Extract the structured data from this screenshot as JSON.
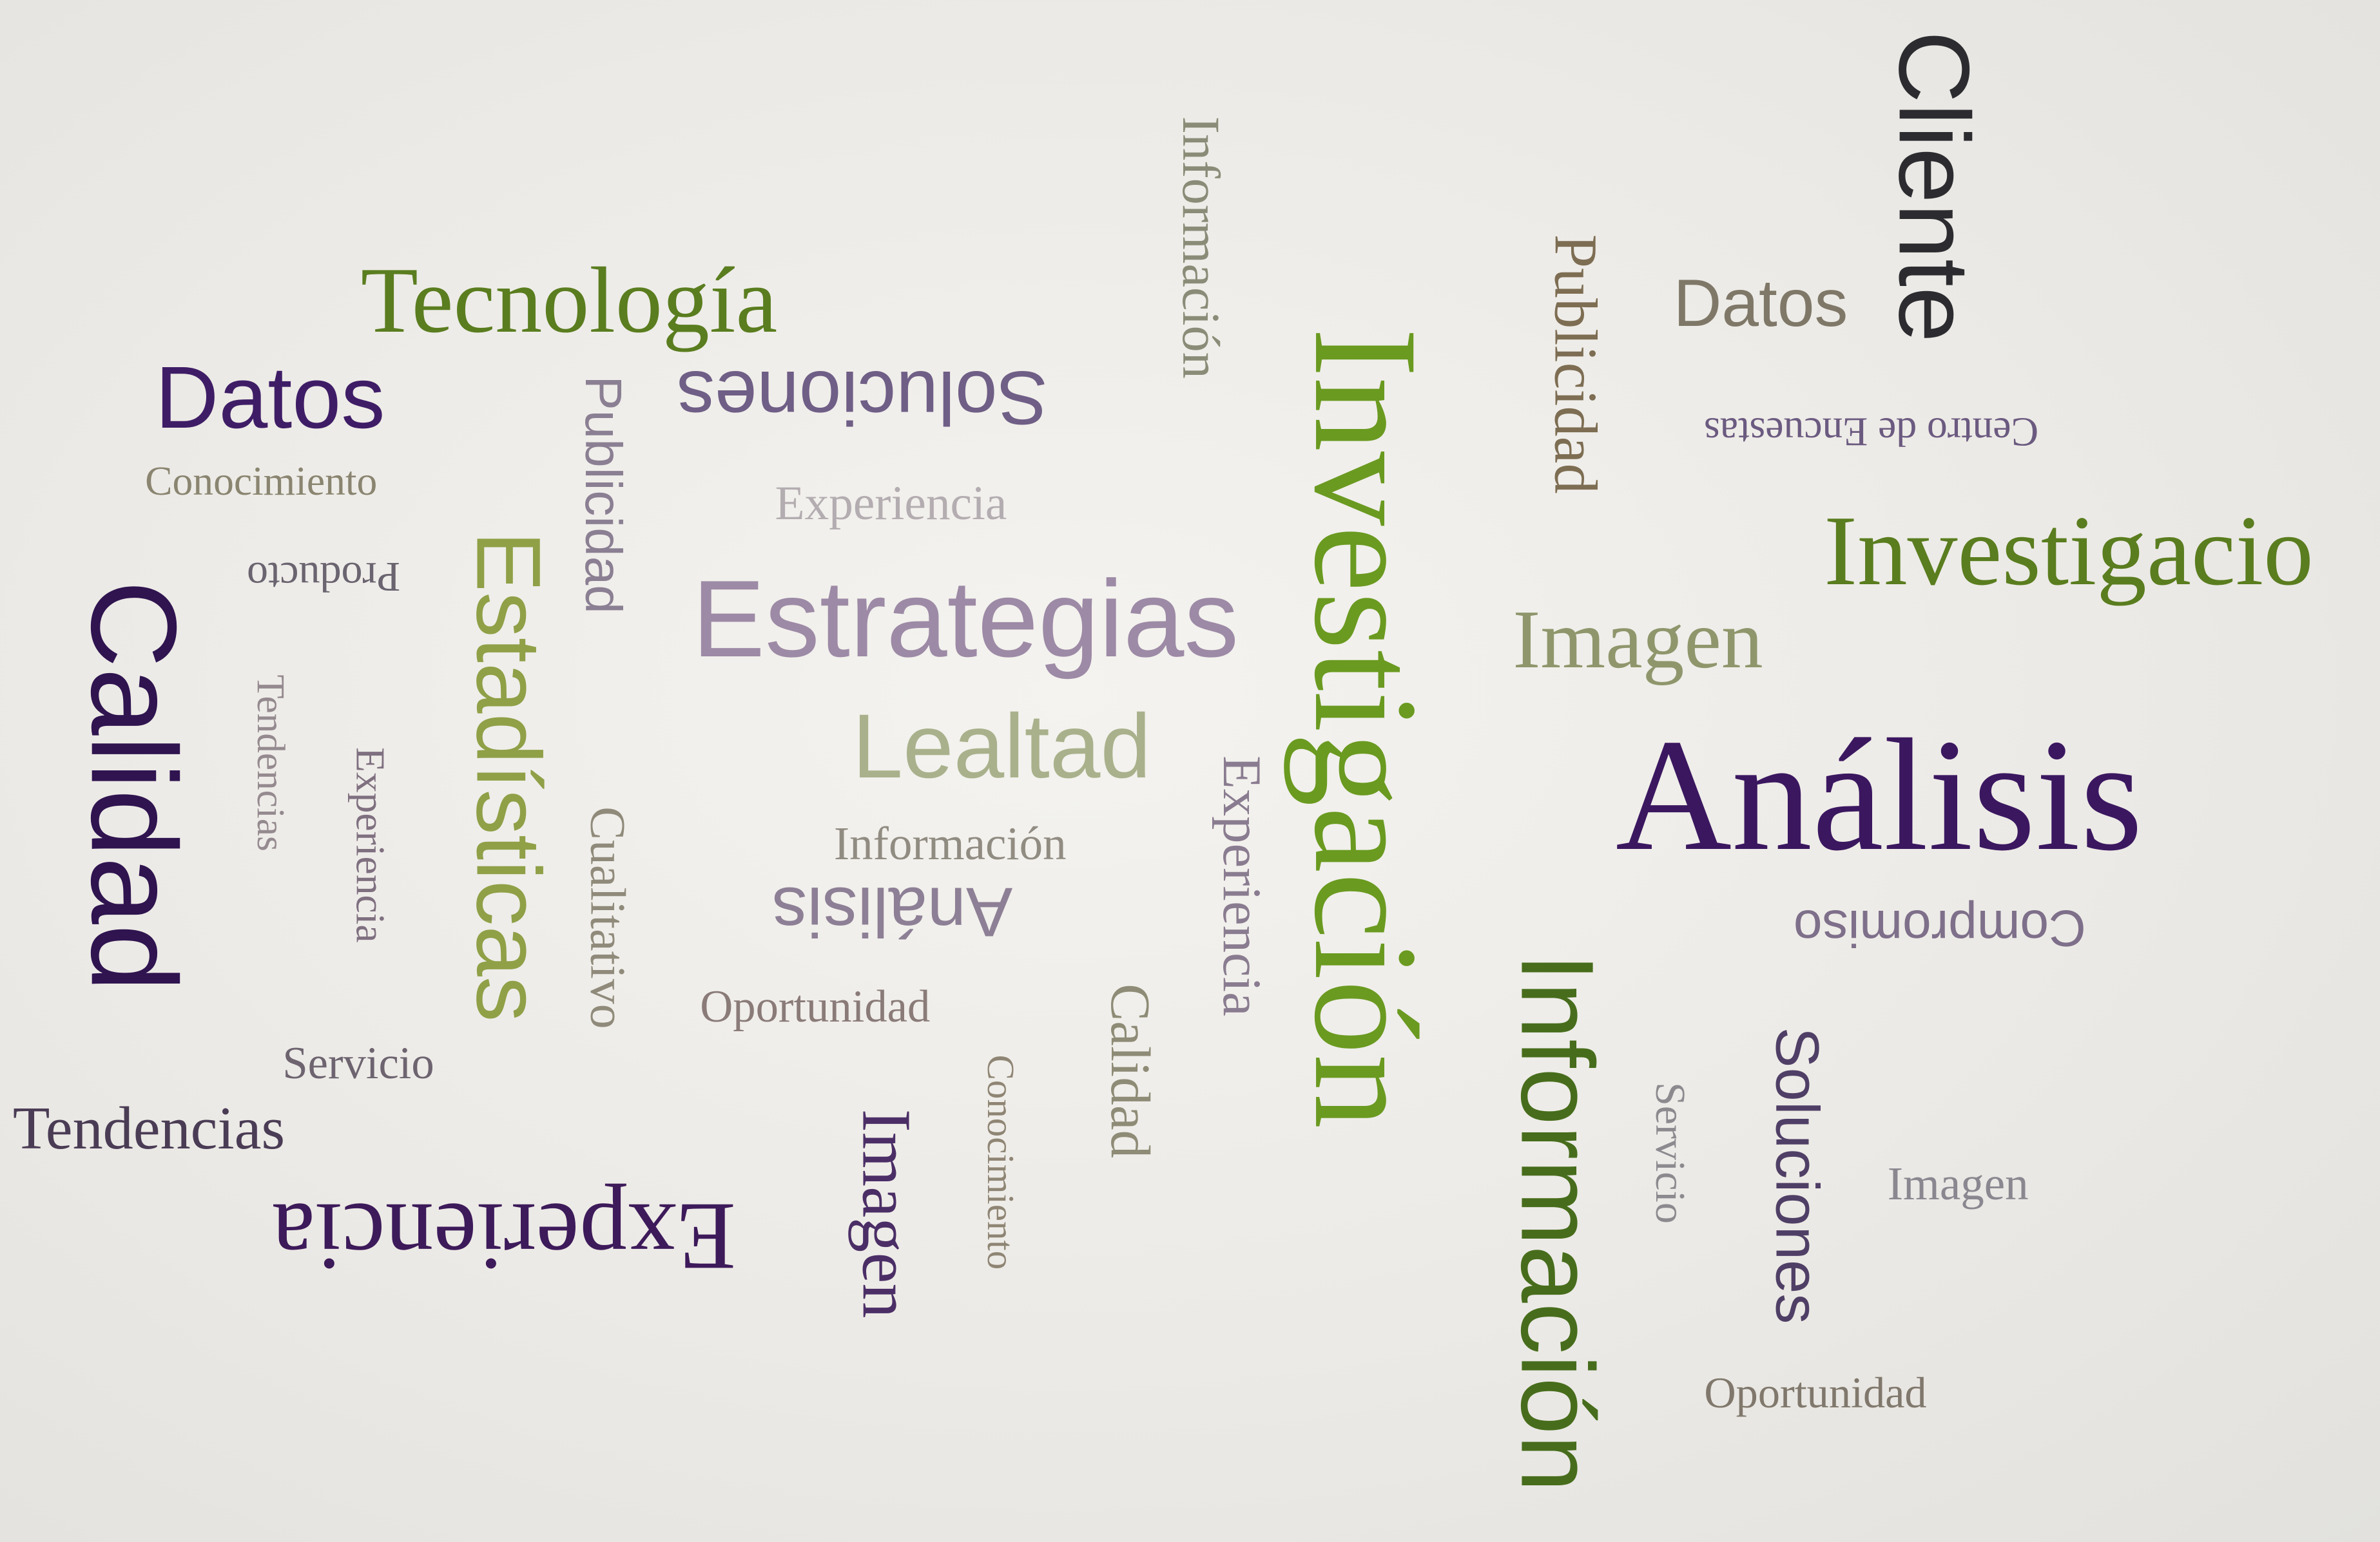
{
  "colors": {
    "background": "#ecebe7",
    "purple_dark": "#3b1760",
    "purple": "#4a2270",
    "green": "#5a7d1f",
    "green_dark": "#476d1c",
    "green_bright": "#6a9a20",
    "olive": "#8a8f55",
    "mauve": "#9d8aa6",
    "grey_purple": "#7f6f8a",
    "grey_green": "#8f9a72",
    "sage": "#a9b18c"
  },
  "words": [
    {
      "text": "Tecnología",
      "color": "#5a7d1f"
    },
    {
      "text": "Datos",
      "color": "#3f1d66"
    },
    {
      "text": "Conocimiento",
      "color": "#8a8570"
    },
    {
      "text": "Calidad",
      "color": "#2f1450"
    },
    {
      "text": "Producto",
      "color": "#6a6470"
    },
    {
      "text": "Tendencias",
      "color": "#948a8f"
    },
    {
      "text": "Experiencia",
      "color": "#7f7080"
    },
    {
      "text": "Servicio",
      "color": "#6d6470"
    },
    {
      "text": "Tendencias",
      "color": "#4a3c55"
    },
    {
      "text": "Experiencia",
      "color": "#3d1a5a"
    },
    {
      "text": "Publicidad",
      "color": "#8b7f93"
    },
    {
      "text": "Estadísticas",
      "color": "#8fa047"
    },
    {
      "text": "Cualitativo",
      "color": "#8f8a7a"
    },
    {
      "text": "Soluciones",
      "color": "#6f5e86"
    },
    {
      "text": "Experiencia",
      "color": "#b3acb0"
    },
    {
      "text": "Estrategias",
      "color": "#9d8aa6"
    },
    {
      "text": "Lealtad",
      "color": "#a9b18c"
    },
    {
      "text": "Información",
      "color": "#918c82"
    },
    {
      "text": "Análisis",
      "color": "#8d7f95"
    },
    {
      "text": "Oportunidad",
      "color": "#8a7b78"
    },
    {
      "text": "Imagen",
      "color": "#4b2e66"
    },
    {
      "text": "Conocimiento",
      "color": "#8f8574"
    },
    {
      "text": "Calidad",
      "color": "#8e8b76"
    },
    {
      "text": "Experiencia",
      "color": "#8a7c90"
    },
    {
      "text": "Información",
      "color": "#8b8c78"
    },
    {
      "text": "Investigación",
      "color": "#6a9a20"
    },
    {
      "text": "Publicidad",
      "color": "#7d6d52"
    },
    {
      "text": "Datos",
      "color": "#7f7868"
    },
    {
      "text": "Cliente",
      "color": "#2c2c30"
    },
    {
      "text": "Centro de Encuestas",
      "color": "#6b5a80"
    },
    {
      "text": "Investigacio",
      "color": "#5a7d1f"
    },
    {
      "text": "Imagen",
      "color": "#8f966c"
    },
    {
      "text": "Análisis",
      "color": "#3b1760"
    },
    {
      "text": "Compromiso",
      "color": "#7e6f8a"
    },
    {
      "text": "Información",
      "color": "#476d1c"
    },
    {
      "text": "Servicio",
      "color": "#8c8a8e"
    },
    {
      "text": "Soluciones",
      "color": "#4f3f66"
    },
    {
      "text": "Imagen",
      "color": "#8b8790"
    },
    {
      "text": "Oportunidad",
      "color": "#80786c"
    }
  ]
}
